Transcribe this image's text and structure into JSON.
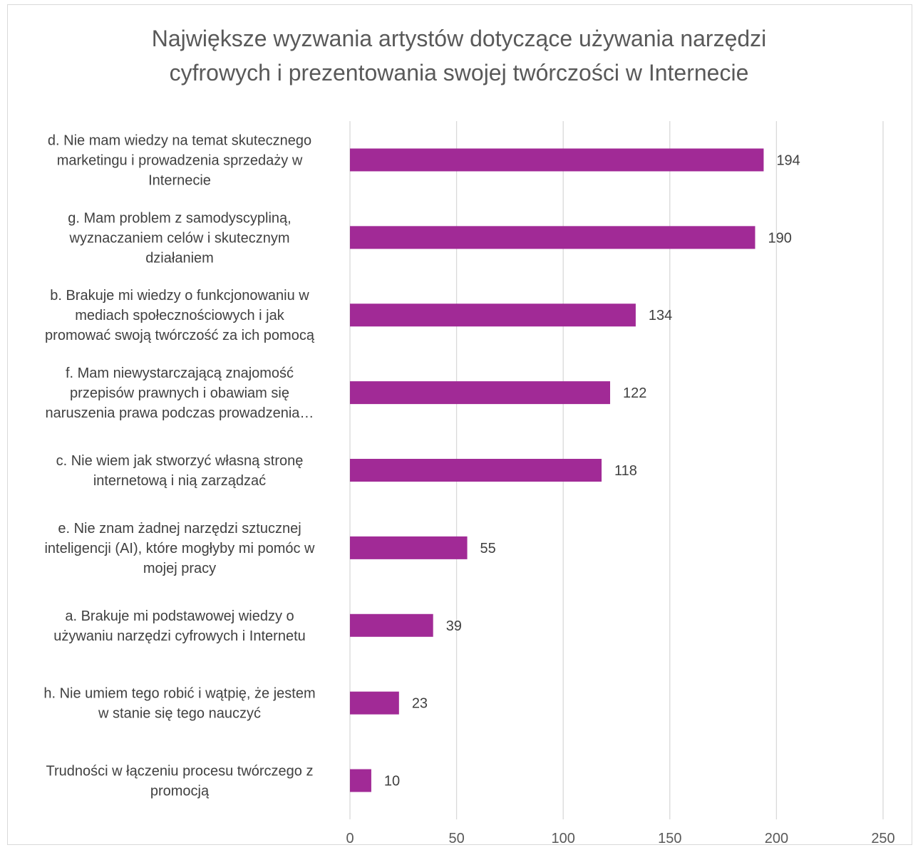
{
  "chart_data": {
    "type": "bar",
    "orientation": "horizontal",
    "title_lines": [
      "Największe wyzwania artystów dotyczące używania narzędzi",
      "cyfrowych i prezentowania swojej twórczości w Internecie"
    ],
    "categories": [
      [
        "d. Nie mam wiedzy na temat skutecznego",
        "marketingu i prowadzenia sprzedaży w",
        "Internecie"
      ],
      [
        "g. Mam problem z samodyscypliną,",
        "wyznaczaniem celów i skutecznym",
        "działaniem"
      ],
      [
        "b. Brakuje mi wiedzy o funkcjonowaniu w",
        "mediach społecznościowych i jak",
        "promować swoją twórczość za ich pomocą"
      ],
      [
        "f. Mam niewystarczającą znajomość",
        "przepisów prawnych i obawiam się",
        "naruszenia prawa podczas prowadzenia…"
      ],
      [
        "c. Nie wiem jak stworzyć własną stronę",
        "internetową i nią zarządzać"
      ],
      [
        "e. Nie znam żadnej narzędzi sztucznej",
        "inteligencji (AI), które mogłyby mi pomóc w",
        "mojej pracy"
      ],
      [
        "a. Brakuje mi podstawowej wiedzy o",
        "używaniu narzędzi cyfrowych i Internetu"
      ],
      [
        "h. Nie umiem tego robić i wątpię, że jestem",
        "w stanie się tego nauczyć"
      ],
      [
        "Trudności w łączeniu procesu twórczego z",
        "promocją"
      ]
    ],
    "values": [
      194,
      190,
      134,
      122,
      118,
      55,
      39,
      23,
      10
    ],
    "xlim": [
      0,
      250
    ],
    "xticks": [
      0,
      50,
      100,
      150,
      200,
      250
    ],
    "grid": true,
    "legend": "none",
    "bar_color": "#A12A96",
    "grid_color": "#d9d9d9"
  }
}
